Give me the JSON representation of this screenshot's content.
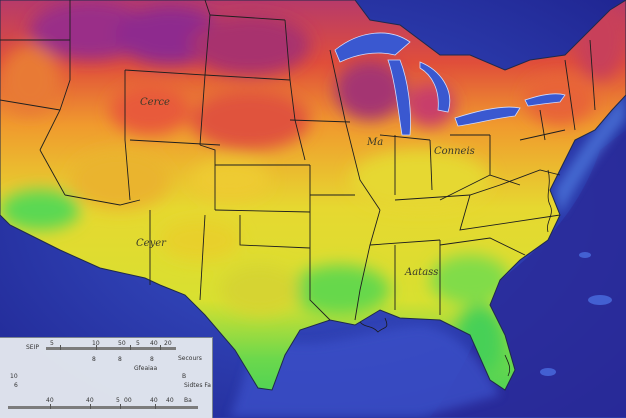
{
  "map": {
    "labels": {
      "north_central": "Cerce",
      "midwest": "Ma",
      "great_lakes_region": "Conneis",
      "southwest": "Ceyer",
      "southeast": "Aatass"
    },
    "colors": {
      "ocean_deep": "#1c1f8a",
      "ocean": "#3550c8",
      "coast_water": "#5b8ae6",
      "hot": "#8c2f8a",
      "warm": "#e0463a",
      "mild": "#f0a02e",
      "moderate": "#e8e030",
      "cool": "#50d85a",
      "border": "#1f1f1f"
    }
  },
  "legend": {
    "row1_left": "SEIP",
    "row1_ticks": [
      "5",
      "10",
      "50",
      "5",
      "40",
      "20"
    ],
    "row1_right": "Secours",
    "row2": [
      "8",
      "8",
      "8"
    ],
    "row3_right": "Gfeaiaa",
    "row4": [
      "10",
      "B"
    ],
    "row5": [
      "6"
    ],
    "row5_right": "Sidtes Fa",
    "row6_ticks": [
      "40",
      "40",
      "5",
      "00",
      "40",
      "40"
    ],
    "row6_right": "Ba"
  }
}
